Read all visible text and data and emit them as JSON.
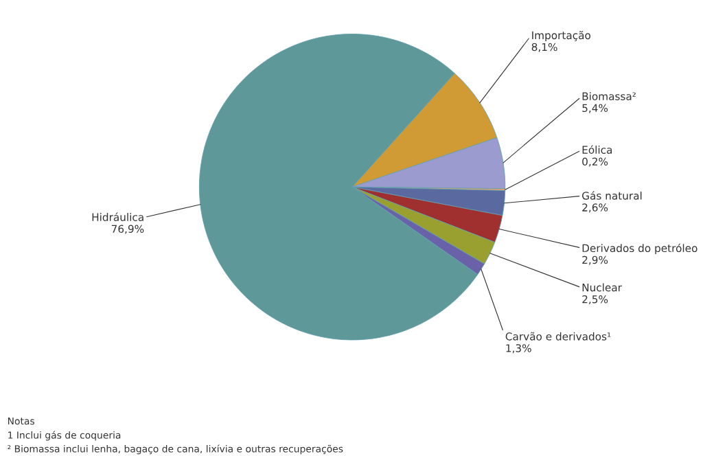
{
  "chart_data": {
    "type": "pie",
    "categories": [
      "Importação",
      "Biomassa²",
      "Eólica",
      "Gás natural",
      "Derivados do petróleo",
      "Nuclear",
      "Carvão e derivados¹",
      "Hidráulica"
    ],
    "values": [
      8.1,
      5.4,
      0.2,
      2.6,
      2.9,
      2.5,
      1.3,
      76.9
    ],
    "value_labels": [
      "8,1%",
      "5,4%",
      "0,2%",
      "2,6%",
      "2,9%",
      "2,5%",
      "1,3%",
      "76,9%"
    ],
    "colors": [
      "#d09a35",
      "#9b9bd0",
      "#e8a070",
      "#5a6aa0",
      "#a03030",
      "#9aa030",
      "#6a62a8",
      "#5f9898"
    ],
    "legend": false,
    "annotations": [
      "Notas",
      "1 Inclui gás de coqueria",
      "² Biomassa inclui lenha, bagaço de cana, lixívia e outras recuperações"
    ]
  }
}
